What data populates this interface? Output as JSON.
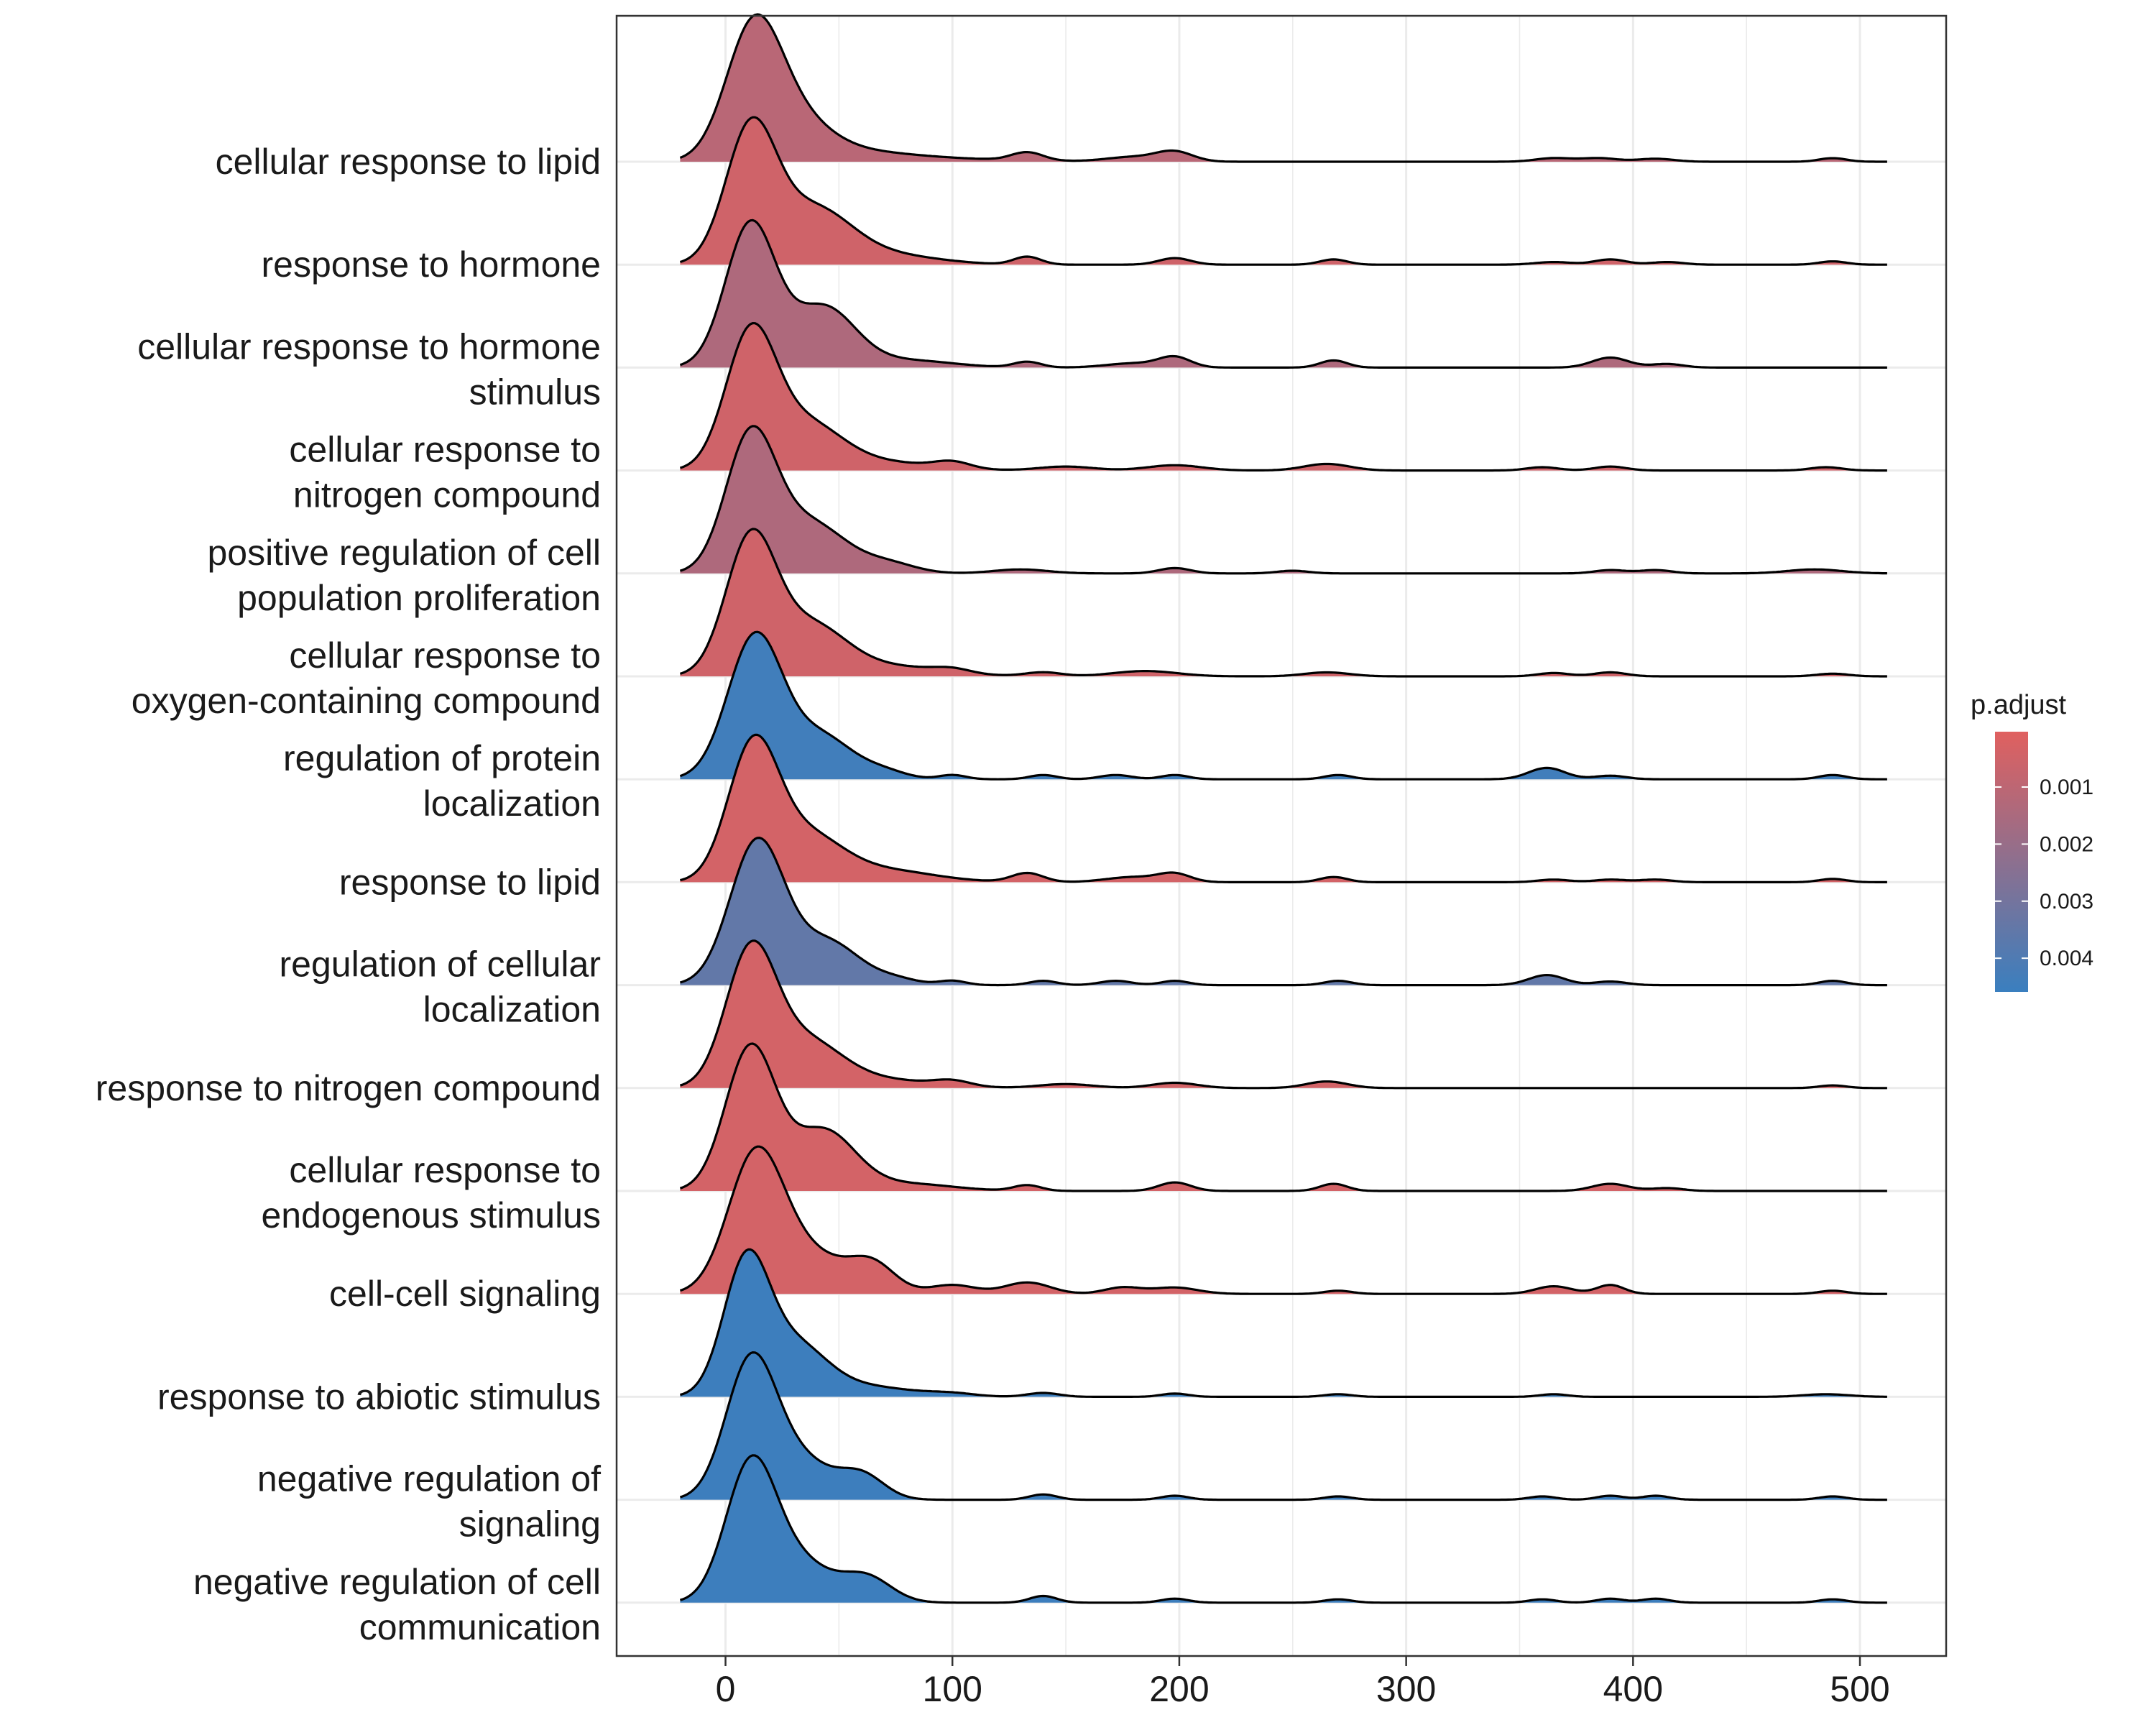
{
  "chart_data": {
    "type": "ridgeline",
    "xlim": [
      -48,
      538
    ],
    "xticks": [
      0,
      100,
      200,
      300,
      400,
      500
    ],
    "x_range": [
      -20,
      512
    ],
    "grid": true,
    "legend": {
      "title": "p.adjust",
      "placement": "right",
      "range": [
        3e-05,
        0.00459
      ],
      "ticks": [
        {
          "value": 0.001,
          "label": "0.001"
        },
        {
          "value": 0.002,
          "label": "0.002"
        },
        {
          "value": 0.003,
          "label": "0.003"
        },
        {
          "value": 0.004,
          "label": "0.004"
        }
      ],
      "low_color": "#E0605F",
      "high_color": "#3A7FBF"
    },
    "series": [
      {
        "label": [
          "cellular response to lipid"
        ],
        "p_adjust": 0.0011,
        "peaks": [
          [
            12,
            1.0,
            12
          ],
          [
            28,
            0.35,
            16
          ],
          [
            55,
            0.08,
            25
          ],
          [
            100,
            0.02,
            30
          ],
          [
            133,
            0.07,
            7
          ],
          [
            180,
            0.04,
            12
          ],
          [
            198,
            0.08,
            8
          ],
          [
            365,
            0.03,
            8
          ],
          [
            385,
            0.03,
            8
          ],
          [
            410,
            0.025,
            8
          ],
          [
            488,
            0.03,
            6
          ]
        ]
      },
      {
        "label": [
          "response to hormone"
        ],
        "p_adjust": 0.0005,
        "peaks": [
          [
            11,
            1.0,
            11
          ],
          [
            38,
            0.42,
            17
          ],
          [
            72,
            0.07,
            22
          ],
          [
            133,
            0.06,
            6
          ],
          [
            198,
            0.05,
            7
          ],
          [
            268,
            0.04,
            6
          ],
          [
            365,
            0.02,
            8
          ],
          [
            390,
            0.04,
            7
          ],
          [
            415,
            0.02,
            7
          ],
          [
            488,
            0.025,
            6
          ]
        ]
      },
      {
        "label": [
          "cellular response to hormone",
          "stimulus"
        ],
        "p_adjust": 0.0014,
        "peaks": [
          [
            11,
            1.0,
            11
          ],
          [
            43,
            0.42,
            14
          ],
          [
            80,
            0.05,
            20
          ],
          [
            133,
            0.04,
            6
          ],
          [
            180,
            0.03,
            12
          ],
          [
            198,
            0.07,
            7
          ],
          [
            268,
            0.05,
            6
          ],
          [
            390,
            0.07,
            8
          ],
          [
            415,
            0.025,
            7
          ]
        ]
      },
      {
        "label": [
          "cellular response to",
          "nitrogen compound"
        ],
        "p_adjust": 0.0005,
        "peaks": [
          [
            11,
            1.0,
            11
          ],
          [
            35,
            0.35,
            16
          ],
          [
            70,
            0.06,
            22
          ],
          [
            100,
            0.05,
            8
          ],
          [
            150,
            0.03,
            12
          ],
          [
            198,
            0.04,
            12
          ],
          [
            265,
            0.05,
            10
          ],
          [
            360,
            0.025,
            7
          ],
          [
            390,
            0.03,
            7
          ],
          [
            485,
            0.025,
            7
          ]
        ]
      },
      {
        "label": [
          "positive regulation of cell",
          "population proliferation"
        ],
        "p_adjust": 0.0014,
        "peaks": [
          [
            11,
            1.0,
            11
          ],
          [
            37,
            0.38,
            16
          ],
          [
            72,
            0.07,
            12
          ],
          [
            130,
            0.03,
            12
          ],
          [
            198,
            0.04,
            7
          ],
          [
            250,
            0.02,
            7
          ],
          [
            390,
            0.025,
            7
          ],
          [
            410,
            0.025,
            7
          ],
          [
            480,
            0.03,
            12
          ]
        ]
      },
      {
        "label": [
          "cellular response to",
          "oxygen-containing compound"
        ],
        "p_adjust": 0.0005,
        "peaks": [
          [
            11,
            1.0,
            11
          ],
          [
            37,
            0.38,
            16
          ],
          [
            75,
            0.07,
            22
          ],
          [
            100,
            0.03,
            8
          ],
          [
            140,
            0.03,
            8
          ],
          [
            185,
            0.04,
            14
          ],
          [
            265,
            0.03,
            10
          ],
          [
            365,
            0.025,
            7
          ],
          [
            390,
            0.03,
            7
          ],
          [
            488,
            0.02,
            7
          ]
        ]
      },
      {
        "label": [
          "regulation of protein",
          "localization"
        ],
        "p_adjust": 0.0044,
        "peaks": [
          [
            13,
            1.0,
            12
          ],
          [
            42,
            0.3,
            14
          ],
          [
            70,
            0.05,
            10
          ],
          [
            100,
            0.03,
            6
          ],
          [
            140,
            0.03,
            6
          ],
          [
            172,
            0.03,
            7
          ],
          [
            198,
            0.03,
            6
          ],
          [
            270,
            0.03,
            6
          ],
          [
            362,
            0.08,
            8
          ],
          [
            390,
            0.025,
            7
          ],
          [
            488,
            0.03,
            6
          ]
        ]
      },
      {
        "label": [
          "response to lipid"
        ],
        "p_adjust": 0.0004,
        "peaks": [
          [
            12,
            1.0,
            11
          ],
          [
            35,
            0.35,
            16
          ],
          [
            70,
            0.09,
            22
          ],
          [
            133,
            0.07,
            7
          ],
          [
            180,
            0.04,
            12
          ],
          [
            198,
            0.06,
            7
          ],
          [
            268,
            0.04,
            6
          ],
          [
            365,
            0.02,
            7
          ],
          [
            390,
            0.02,
            7
          ],
          [
            410,
            0.02,
            7
          ],
          [
            488,
            0.025,
            6
          ]
        ]
      },
      {
        "label": [
          "regulation of cellular",
          "localization"
        ],
        "p_adjust": 0.0035,
        "peaks": [
          [
            14,
            1.0,
            12
          ],
          [
            45,
            0.3,
            14
          ],
          [
            75,
            0.04,
            10
          ],
          [
            100,
            0.03,
            6
          ],
          [
            140,
            0.03,
            6
          ],
          [
            172,
            0.03,
            7
          ],
          [
            198,
            0.03,
            6
          ],
          [
            270,
            0.03,
            6
          ],
          [
            362,
            0.07,
            8
          ],
          [
            390,
            0.025,
            7
          ],
          [
            488,
            0.03,
            6
          ]
        ]
      },
      {
        "label": [
          "response to nitrogen compound"
        ],
        "p_adjust": 0.0004,
        "peaks": [
          [
            11,
            1.0,
            11
          ],
          [
            35,
            0.35,
            16
          ],
          [
            70,
            0.06,
            22
          ],
          [
            100,
            0.04,
            8
          ],
          [
            150,
            0.03,
            12
          ],
          [
            198,
            0.04,
            10
          ],
          [
            265,
            0.05,
            9
          ],
          [
            488,
            0.02,
            6
          ]
        ]
      },
      {
        "label": [
          "cellular response to",
          "endogenous stimulus"
        ],
        "p_adjust": 0.0004,
        "peaks": [
          [
            11,
            1.0,
            11
          ],
          [
            43,
            0.42,
            14
          ],
          [
            80,
            0.05,
            20
          ],
          [
            133,
            0.04,
            6
          ],
          [
            198,
            0.06,
            7
          ],
          [
            268,
            0.05,
            6
          ],
          [
            390,
            0.05,
            8
          ],
          [
            415,
            0.02,
            7
          ]
        ]
      },
      {
        "label": [
          "cell-cell signaling"
        ],
        "p_adjust": 0.0004,
        "peaks": [
          [
            13,
            1.0,
            12
          ],
          [
            35,
            0.32,
            18
          ],
          [
            65,
            0.2,
            10
          ],
          [
            100,
            0.07,
            10
          ],
          [
            133,
            0.09,
            10
          ],
          [
            175,
            0.05,
            8
          ],
          [
            198,
            0.05,
            10
          ],
          [
            270,
            0.025,
            6
          ],
          [
            365,
            0.06,
            8
          ],
          [
            390,
            0.07,
            6
          ],
          [
            488,
            0.025,
            6
          ]
        ]
      },
      {
        "label": [
          "response to abiotic stimulus"
        ],
        "p_adjust": 0.0045,
        "peaks": [
          [
            9,
            1.0,
            10
          ],
          [
            30,
            0.38,
            14
          ],
          [
            60,
            0.08,
            22
          ],
          [
            100,
            0.02,
            10
          ],
          [
            140,
            0.03,
            7
          ],
          [
            198,
            0.025,
            6
          ],
          [
            270,
            0.02,
            6
          ],
          [
            365,
            0.02,
            6
          ],
          [
            485,
            0.02,
            10
          ]
        ]
      },
      {
        "label": [
          "negative regulation of",
          "signaling"
        ],
        "p_adjust": 0.0045,
        "peaks": [
          [
            11,
            1.0,
            11
          ],
          [
            32,
            0.3,
            14
          ],
          [
            60,
            0.18,
            10
          ],
          [
            140,
            0.04,
            6
          ],
          [
            198,
            0.03,
            6
          ],
          [
            270,
            0.025,
            6
          ],
          [
            360,
            0.025,
            6
          ],
          [
            390,
            0.03,
            6
          ],
          [
            410,
            0.03,
            6
          ],
          [
            488,
            0.025,
            6
          ]
        ]
      },
      {
        "label": [
          "negative regulation of cell",
          "communication"
        ],
        "p_adjust": 0.0045,
        "peaks": [
          [
            11,
            1.0,
            11
          ],
          [
            32,
            0.3,
            14
          ],
          [
            62,
            0.19,
            11
          ],
          [
            140,
            0.05,
            6
          ],
          [
            198,
            0.03,
            6
          ],
          [
            270,
            0.025,
            6
          ],
          [
            360,
            0.025,
            6
          ],
          [
            390,
            0.03,
            6
          ],
          [
            410,
            0.03,
            6
          ],
          [
            488,
            0.025,
            6
          ]
        ]
      }
    ]
  }
}
